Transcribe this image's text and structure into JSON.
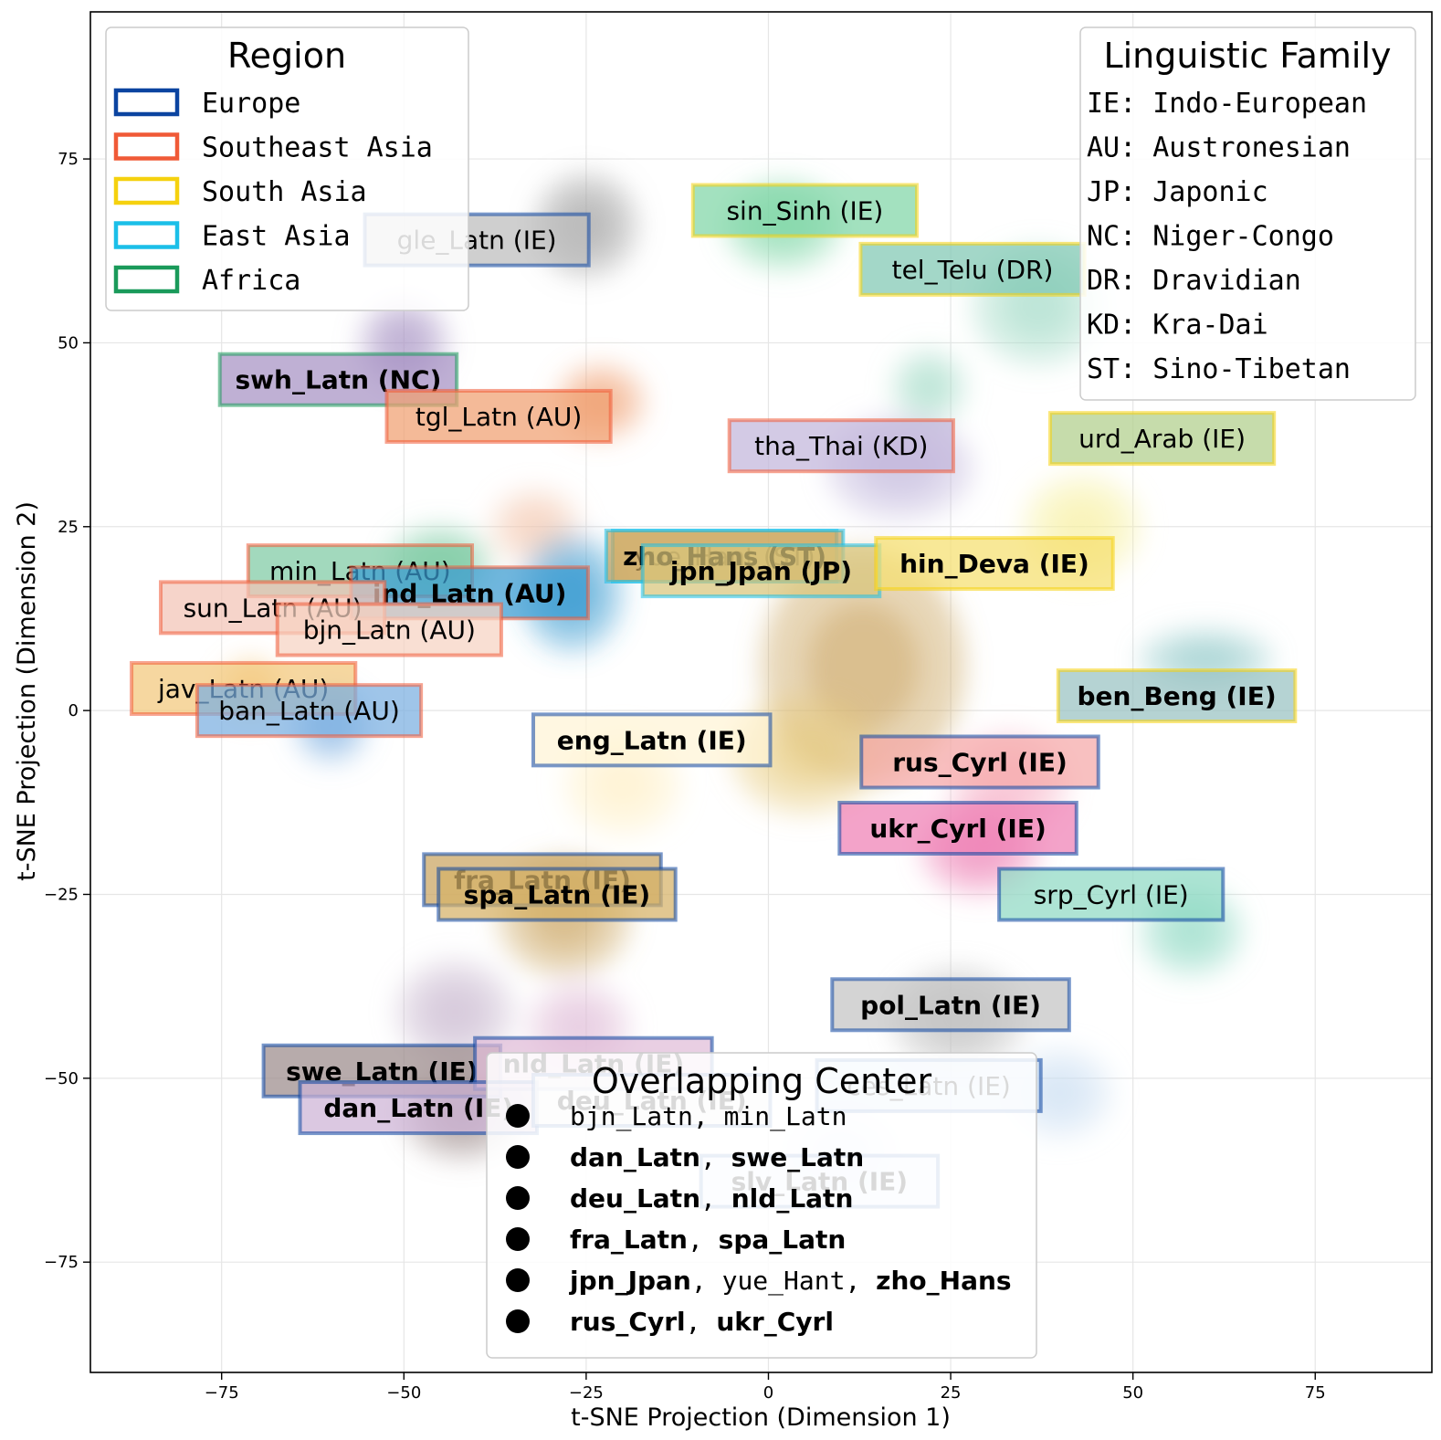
{
  "chart_data": {
    "type": "scatter",
    "subtype": "t-SNE density map with labeled language clusters",
    "title": "",
    "xlabel": "t-SNE Projection (Dimension 1)",
    "ylabel": "t-SNE Projection (Dimension 2)",
    "xlim": [
      -93,
      91
    ],
    "ylim": [
      -90,
      95
    ],
    "xticks": [
      -75,
      -50,
      -25,
      0,
      25,
      50,
      75
    ],
    "yticks": [
      -75,
      -50,
      -25,
      0,
      25,
      50,
      75
    ],
    "xtick_labels": [
      "−75",
      "−50",
      "−25",
      "0",
      "25",
      "50",
      "75"
    ],
    "ytick_labels": [
      "−75",
      "−50",
      "−25",
      "0",
      "25",
      "50",
      "75"
    ],
    "grid": true,
    "region_legend": {
      "title": "Region",
      "position": "top-left",
      "items": [
        {
          "label": "Europe",
          "color": "#0b44a0"
        },
        {
          "label": "Southeast Asia",
          "color": "#f05a37"
        },
        {
          "label": "South Asia",
          "color": "#f5d10e"
        },
        {
          "label": "East Asia",
          "color": "#1bbfe8"
        },
        {
          "label": "Africa",
          "color": "#1a9a5a"
        }
      ]
    },
    "family_legend": {
      "title": "Linguistic Family",
      "position": "top-right",
      "items": [
        "IE: Indo-European",
        "AU: Austronesian",
        "JP: Japonic",
        "NC: Niger-Congo",
        "DR: Dravidian",
        "KD: Kra-Dai",
        "ST: Sino-Tibetan"
      ]
    },
    "overlap_legend": {
      "title": "Overlapping Center",
      "position": "bottom-center",
      "rows": [
        [
          {
            "t": "bjn_Latn",
            "b": false
          },
          {
            "t": ", ",
            "b": false
          },
          {
            "t": "min_Latn",
            "b": false
          }
        ],
        [
          {
            "t": "dan_Latn",
            "b": true
          },
          {
            "t": ", ",
            "b": false
          },
          {
            "t": "swe_Latn",
            "b": true
          }
        ],
        [
          {
            "t": "deu_Latn",
            "b": true
          },
          {
            "t": ", ",
            "b": false
          },
          {
            "t": "nld_Latn",
            "b": true
          }
        ],
        [
          {
            "t": "fra_Latn",
            "b": true
          },
          {
            "t": ", ",
            "b": false
          },
          {
            "t": "spa_Latn",
            "b": true
          }
        ],
        [
          {
            "t": "jpn_Jpan",
            "b": true
          },
          {
            "t": ", ",
            "b": false
          },
          {
            "t": "yue_Hant",
            "b": false
          },
          {
            "t": ", ",
            "b": false
          },
          {
            "t": "zho_Hans",
            "b": true
          }
        ],
        [
          {
            "t": "rus_Cyrl",
            "b": true
          },
          {
            "t": ", ",
            "b": false
          },
          {
            "t": "ukr_Cyrl",
            "b": true
          }
        ]
      ]
    },
    "clusters": [
      {
        "label": "gle_Latn (IE)",
        "x": -40,
        "y": 64,
        "region": "Europe",
        "fill": "#bdbdbd",
        "bold": false
      },
      {
        "label": "sin_Sinh (IE)",
        "x": 5,
        "y": 68,
        "region": "South Asia",
        "fill": "#7fd6a6",
        "bold": false
      },
      {
        "label": "tel_Telu (DR)",
        "x": 28,
        "y": 60,
        "region": "South Asia",
        "fill": "#80c7b3",
        "bold": false
      },
      {
        "label": "swh_Latn (NC)",
        "x": -59,
        "y": 45,
        "region": "Africa",
        "fill": "#a692c4",
        "bold": true
      },
      {
        "label": "tgl_Latn (AU)",
        "x": -37,
        "y": 40,
        "region": "Southeast Asia",
        "fill": "#f0a070",
        "bold": false
      },
      {
        "label": "tha_Thai (KD)",
        "x": 10,
        "y": 36,
        "region": "Southeast Asia",
        "fill": "#c2b6db",
        "bold": false
      },
      {
        "label": "urd_Arab (IE)",
        "x": 54,
        "y": 37,
        "region": "South Asia",
        "fill": "#b0cf8a",
        "bold": false
      },
      {
        "label": "yue_Hant (ST)",
        "x": -6,
        "y": 21,
        "region": "East Asia",
        "fill": "#e6c97c",
        "bold": false
      },
      {
        "label": "zho_Hans (ST)",
        "x": -6,
        "y": 21,
        "region": "East Asia",
        "fill": "#c9a45f",
        "bold": true
      },
      {
        "label": "jpn_Jpan (JP)",
        "x": -1,
        "y": 19,
        "region": "East Asia",
        "fill": "#d8c57a",
        "bold": true
      },
      {
        "label": "hin_Deva (IE)",
        "x": 31,
        "y": 20,
        "region": "South Asia",
        "fill": "#f5df6f",
        "bold": true
      },
      {
        "label": "min_Latn (AU)",
        "x": -56,
        "y": 19,
        "region": "Southeast Asia",
        "fill": "#7ecba4",
        "bold": false
      },
      {
        "label": "ind_Latn (AU)",
        "x": -41,
        "y": 16,
        "region": "Southeast Asia",
        "fill": "#3a9bd1",
        "bold": true
      },
      {
        "label": "sun_Latn (AU)",
        "x": -68,
        "y": 14,
        "region": "Southeast Asia",
        "fill": "#f2c4b6",
        "bold": false
      },
      {
        "label": "bjn_Latn (AU)",
        "x": -52,
        "y": 11,
        "region": "Southeast Asia",
        "fill": "#f7d2c2",
        "bold": false
      },
      {
        "label": "jav_Latn (AU)",
        "x": -72,
        "y": 3,
        "region": "Southeast Asia",
        "fill": "#f3c87c",
        "bold": false
      },
      {
        "label": "ban_Latn (AU)",
        "x": -63,
        "y": 0,
        "region": "Southeast Asia",
        "fill": "#7aaee0",
        "bold": false
      },
      {
        "label": "ben_Beng (IE)",
        "x": 56,
        "y": 2,
        "region": "South Asia",
        "fill": "#99c2c2",
        "bold": true
      },
      {
        "label": "eng_Latn (IE)",
        "x": -16,
        "y": -4,
        "region": "Europe",
        "fill": "#fff4d6",
        "bold": true
      },
      {
        "label": "rus_Cyrl (IE)",
        "x": 29,
        "y": -7,
        "region": "Europe",
        "fill": "#f5a8a8",
        "bold": true
      },
      {
        "label": "ukr_Cyrl (IE)",
        "x": 26,
        "y": -16,
        "region": "Europe",
        "fill": "#ee7fb4",
        "bold": true
      },
      {
        "label": "fra_Latn (IE)",
        "x": -31,
        "y": -23,
        "region": "Europe",
        "fill": "#c9a45f",
        "bold": true
      },
      {
        "label": "spa_Latn (IE)",
        "x": -29,
        "y": -25,
        "region": "Europe",
        "fill": "#d6b266",
        "bold": true
      },
      {
        "label": "srp_Cyrl (IE)",
        "x": 47,
        "y": -25,
        "region": "Europe",
        "fill": "#8fd9c4",
        "bold": false
      },
      {
        "label": "pol_Latn (IE)",
        "x": 25,
        "y": -40,
        "region": "Europe",
        "fill": "#c4c4c4",
        "bold": true
      },
      {
        "label": "swe_Latn (IE)",
        "x": -53,
        "y": -49,
        "region": "Europe",
        "fill": "#9b8a8a",
        "bold": true
      },
      {
        "label": "nld_Latn (IE)",
        "x": -24,
        "y": -48,
        "region": "Europe",
        "fill": "#e0bcd8",
        "bold": true
      },
      {
        "label": "dan_Latn (IE)",
        "x": -48,
        "y": -54,
        "region": "Europe",
        "fill": "#cdb3d6",
        "bold": true
      },
      {
        "label": "deu_Latn (IE)",
        "x": -16,
        "y": -53,
        "region": "Europe",
        "fill": "#e8e8e8",
        "bold": true
      },
      {
        "label": "ces_Latn (IE)",
        "x": 22,
        "y": -51,
        "region": "Europe",
        "fill": "#c9ddf2",
        "bold": false
      },
      {
        "label": "slv_Latn (IE)",
        "x": 7,
        "y": -64,
        "region": "Europe",
        "fill": "#dfe9fb",
        "bold": true
      }
    ],
    "density_blobs": [
      {
        "x": -25,
        "y": 66,
        "sx": 7,
        "sy": 7,
        "color": "#9e9e9e"
      },
      {
        "x": 2,
        "y": 66,
        "sx": 8,
        "sy": 6,
        "color": "#7fd6a6"
      },
      {
        "x": 37,
        "y": 55,
        "sx": 9,
        "sy": 8,
        "color": "#a3dcc8"
      },
      {
        "x": 22,
        "y": 44,
        "sx": 5,
        "sy": 5,
        "color": "#a3dcc8"
      },
      {
        "x": -50,
        "y": 50,
        "sx": 6,
        "sy": 6,
        "color": "#a692c4"
      },
      {
        "x": -23,
        "y": 42,
        "sx": 6,
        "sy": 5,
        "color": "#f0a070"
      },
      {
        "x": 18,
        "y": 33,
        "sx": 10,
        "sy": 7,
        "color": "#c2b6db"
      },
      {
        "x": 43,
        "y": 25,
        "sx": 8,
        "sy": 7,
        "color": "#f7ef9e"
      },
      {
        "x": -32,
        "y": 25,
        "sx": 6,
        "sy": 5,
        "color": "#f5c7b0"
      },
      {
        "x": -27,
        "y": 16,
        "sx": 7,
        "sy": 8,
        "color": "#3a9bd1"
      },
      {
        "x": -45,
        "y": 20,
        "sx": 7,
        "sy": 5,
        "color": "#7ecba4"
      },
      {
        "x": 13,
        "y": 6,
        "sx": 14,
        "sy": 16,
        "color": "#c9a45f"
      },
      {
        "x": 5,
        "y": -6,
        "sx": 10,
        "sy": 8,
        "color": "#e6c97c"
      },
      {
        "x": -20,
        "y": -10,
        "sx": 8,
        "sy": 7,
        "color": "#fff0c6"
      },
      {
        "x": -28,
        "y": -28,
        "sx": 9,
        "sy": 8,
        "color": "#c9a45f"
      },
      {
        "x": 33,
        "y": -10,
        "sx": 8,
        "sy": 7,
        "color": "#f7b3c7"
      },
      {
        "x": 29,
        "y": -19,
        "sx": 8,
        "sy": 6,
        "color": "#ee7fb4"
      },
      {
        "x": 58,
        "y": -30,
        "sx": 7,
        "sy": 6,
        "color": "#8fd9c4"
      },
      {
        "x": 60,
        "y": 7,
        "sx": 9,
        "sy": 4,
        "color": "#8fc7c7"
      },
      {
        "x": 26,
        "y": -42,
        "sx": 9,
        "sy": 7,
        "color": "#bdbdbd"
      },
      {
        "x": -43,
        "y": -41,
        "sx": 8,
        "sy": 7,
        "color": "#c7b6cf"
      },
      {
        "x": -26,
        "y": -43,
        "sx": 7,
        "sy": 6,
        "color": "#e0bcd8"
      },
      {
        "x": -42,
        "y": -55,
        "sx": 8,
        "sy": 6,
        "color": "#9b8a8a"
      },
      {
        "x": -60,
        "y": -2,
        "sx": 5,
        "sy": 5,
        "color": "#7aaee0"
      },
      {
        "x": -71,
        "y": 3,
        "sx": 4,
        "sy": 4,
        "color": "#f3c87c"
      },
      {
        "x": 10,
        "y": -60,
        "sx": 8,
        "sy": 6,
        "color": "#dfe9fb"
      },
      {
        "x": 40,
        "y": -52,
        "sx": 7,
        "sy": 6,
        "color": "#c9ddf2"
      }
    ]
  }
}
